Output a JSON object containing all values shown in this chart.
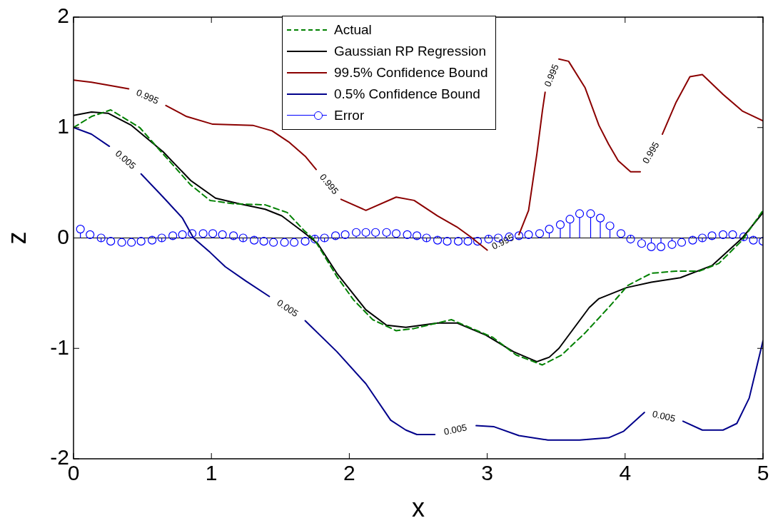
{
  "chart_data": {
    "type": "line",
    "xlabel": "x",
    "ylabel": "z",
    "xlim": [
      0,
      5
    ],
    "ylim": [
      -2,
      2
    ],
    "xticks": [
      0,
      1,
      2,
      3,
      4,
      5
    ],
    "yticks": [
      -2,
      -1,
      0,
      1,
      2
    ],
    "grid": false,
    "legend": "top",
    "series": [
      {
        "name": "Actual",
        "type": "line",
        "color": "#008000",
        "line_style": "dashed",
        "x": [
          0,
          0.13,
          0.27,
          0.48,
          0.65,
          0.85,
          0.99,
          1.16,
          1.39,
          1.55,
          1.67,
          1.75,
          1.91,
          2.03,
          2.17,
          2.34,
          2.47,
          2.74,
          3.04,
          3.21,
          3.4,
          3.54,
          3.71,
          3.88,
          4.02,
          4.19,
          4.37,
          4.54,
          4.68,
          4.85,
          5.0
        ],
        "values": [
          1.0,
          1.1,
          1.16,
          1.0,
          0.76,
          0.48,
          0.34,
          0.31,
          0.3,
          0.23,
          0.07,
          -0.02,
          -0.35,
          -0.56,
          -0.74,
          -0.84,
          -0.82,
          -0.74,
          -0.9,
          -1.06,
          -1.15,
          -1.06,
          -0.86,
          -0.63,
          -0.43,
          -0.32,
          -0.3,
          -0.3,
          -0.23,
          -0.02,
          0.25
        ]
      },
      {
        "name": "Gaussian RP Regression",
        "type": "line",
        "color": "#000000",
        "line_style": "solid",
        "x": [
          0,
          0.13,
          0.25,
          0.42,
          0.65,
          0.85,
          1.03,
          1.2,
          1.39,
          1.51,
          1.67,
          1.77,
          1.91,
          2.12,
          2.27,
          2.41,
          2.64,
          2.78,
          2.99,
          3.19,
          3.36,
          3.45,
          3.52,
          3.74,
          3.81,
          4.01,
          4.19,
          4.4,
          4.63,
          4.85,
          5.0
        ],
        "values": [
          1.11,
          1.14,
          1.13,
          1.02,
          0.78,
          0.52,
          0.36,
          0.31,
          0.26,
          0.2,
          0.05,
          -0.05,
          -0.32,
          -0.65,
          -0.79,
          -0.81,
          -0.77,
          -0.77,
          -0.88,
          -1.03,
          -1.12,
          -1.08,
          -1.0,
          -0.63,
          -0.55,
          -0.45,
          -0.4,
          -0.36,
          -0.25,
          0,
          0.23
        ]
      },
      {
        "name": "99.5% Confidence Bound",
        "type": "line",
        "color": "#8b0000",
        "line_style": "solid",
        "x": [
          0,
          0.13,
          0.27,
          0.4,
          0.53,
          0.67,
          0.82,
          1.01,
          1.3,
          1.44,
          1.56,
          1.68,
          1.76,
          1.85,
          1.94,
          2.12,
          2.34,
          2.47,
          2.64,
          2.78,
          2.88,
          3.0,
          3.12,
          3.23,
          3.3,
          3.36,
          3.4,
          3.42,
          3.47,
          3.52,
          3.59,
          3.71,
          3.81,
          3.88,
          3.95,
          4.04,
          4.11,
          4.2,
          4.27,
          4.37,
          4.47,
          4.56,
          4.71,
          4.85,
          5.0
        ],
        "values": [
          1.43,
          1.41,
          1.38,
          1.35,
          null,
          1.2,
          1.1,
          1.03,
          1.02,
          0.97,
          0.87,
          0.74,
          0.62,
          null,
          0.35,
          0.25,
          0.37,
          0.34,
          0.2,
          0.1,
          0.01,
          -0.11,
          null,
          0.03,
          0.25,
          0.76,
          1.15,
          1.32,
          null,
          1.62,
          1.6,
          1.36,
          1.02,
          0.85,
          0.7,
          0.6,
          0.6,
          null,
          0.94,
          1.23,
          1.46,
          1.48,
          1.3,
          1.15,
          1.06
        ]
      },
      {
        "name": "0.5% Confidence Bound",
        "type": "line",
        "color": "#00008b",
        "line_style": "solid",
        "x": [
          0,
          0.13,
          0.26,
          0.36,
          0.49,
          0.65,
          0.79,
          0.87,
          0.99,
          1.1,
          1.25,
          1.42,
          1.55,
          1.68,
          1.91,
          2.12,
          2.3,
          2.41,
          2.49,
          2.62,
          2.77,
          2.92,
          3.05,
          3.23,
          3.44,
          3.67,
          3.88,
          3.99,
          4.14,
          4.27,
          4.42,
          4.56,
          4.71,
          4.81,
          4.9,
          4.95,
          5.0
        ],
        "values": [
          1.0,
          0.94,
          0.83,
          null,
          0.58,
          0.37,
          0.18,
          0,
          -0.13,
          -0.26,
          -0.39,
          -0.53,
          null,
          -0.75,
          -1.03,
          -1.32,
          -1.65,
          -1.74,
          -1.78,
          -1.78,
          null,
          -1.7,
          -1.71,
          -1.79,
          -1.83,
          -1.83,
          -1.81,
          -1.75,
          -1.58,
          null,
          -1.66,
          -1.74,
          -1.74,
          -1.68,
          -1.45,
          -1.19,
          -0.93
        ]
      },
      {
        "name": "Error",
        "type": "lollipop",
        "color": "#0000ff",
        "marker": "circle",
        "x": [
          0.05,
          0.12,
          0.2,
          0.27,
          0.35,
          0.42,
          0.49,
          0.57,
          0.64,
          0.72,
          0.79,
          0.86,
          0.94,
          1.01,
          1.08,
          1.16,
          1.23,
          1.31,
          1.38,
          1.45,
          1.53,
          1.6,
          1.68,
          1.75,
          1.82,
          1.9,
          1.97,
          2.05,
          2.12,
          2.19,
          2.27,
          2.34,
          2.42,
          2.49,
          2.56,
          2.64,
          2.71,
          2.79,
          2.86,
          2.93,
          3.01,
          3.08,
          3.16,
          3.23,
          3.3,
          3.38,
          3.45,
          3.53,
          3.6,
          3.67,
          3.75,
          3.82,
          3.89,
          3.97,
          4.04,
          4.12,
          4.19,
          4.26,
          4.34,
          4.41,
          4.49,
          4.56,
          4.63,
          4.71,
          4.78,
          4.86,
          4.93,
          5.0
        ],
        "values": [
          0.08,
          0.03,
          0,
          -0.03,
          -0.04,
          -0.04,
          -0.03,
          -0.02,
          0,
          0.02,
          0.03,
          0.04,
          0.04,
          0.04,
          0.03,
          0.02,
          0,
          -0.02,
          -0.03,
          -0.04,
          -0.04,
          -0.04,
          -0.03,
          -0.01,
          0,
          0.02,
          0.03,
          0.05,
          0.05,
          0.05,
          0.05,
          0.04,
          0.03,
          0.02,
          0,
          -0.02,
          -0.03,
          -0.03,
          -0.03,
          -0.03,
          -0.01,
          0,
          0.01,
          0.02,
          0.03,
          0.04,
          0.08,
          0.12,
          0.17,
          0.22,
          0.22,
          0.18,
          0.11,
          0.04,
          -0.01,
          -0.05,
          -0.08,
          -0.08,
          -0.06,
          -0.04,
          -0.02,
          0,
          0.02,
          0.03,
          0.03,
          0.01,
          -0.02,
          -0.03
        ]
      }
    ],
    "ref_lines": [
      {
        "axis": "y",
        "value": 0,
        "color": "#000000"
      }
    ],
    "annotations": [
      {
        "text": "0.995",
        "x": 0.4,
        "y": 1.35
      },
      {
        "text": "0.005",
        "x": 0.26,
        "y": 0.83
      },
      {
        "text": "0.995",
        "x": 1.76,
        "y": 0.62
      },
      {
        "text": "0.005",
        "x": 1.42,
        "y": -0.53
      },
      {
        "text": "0.995",
        "x": 3.0,
        "y": -0.11
      },
      {
        "text": "0.995",
        "x": 3.42,
        "y": 1.32
      },
      {
        "text": "0.995",
        "x": 4.11,
        "y": 0.6
      },
      {
        "text": "0.005",
        "x": 2.62,
        "y": -1.78
      },
      {
        "text": "0.005",
        "x": 4.14,
        "y": -1.58
      }
    ]
  }
}
